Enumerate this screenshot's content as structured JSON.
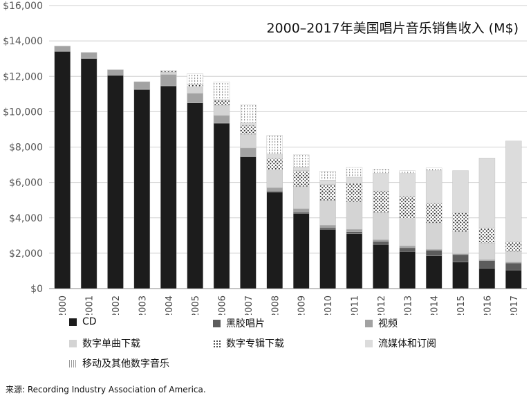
{
  "chart_data": {
    "type": "bar",
    "stacked": true,
    "title": "2000–2017年美国唱片音乐销售收入 (M$)",
    "xlabel": "",
    "ylabel": "",
    "ylim": [
      0,
      16000
    ],
    "grid": true,
    "legend_position": "bottom",
    "categories": [
      "2000",
      "2001",
      "2002",
      "2003",
      "2004",
      "2005",
      "2006",
      "2007",
      "2008",
      "2009",
      "2010",
      "2011",
      "2012",
      "2013",
      "2014",
      "2015",
      "2016",
      "2017"
    ],
    "y_ticks": [
      "$0",
      "$2,000",
      "$4,000",
      "$6,000",
      "$8,000",
      "$10,000",
      "$12,000",
      "$14,000",
      "$16,000"
    ],
    "series": [
      {
        "name": "CD",
        "color": "#1c1c1c",
        "pattern": "solid",
        "values": [
          13400,
          13000,
          12050,
          11250,
          11450,
          10500,
          9350,
          7450,
          5450,
          4250,
          3350,
          3100,
          2500,
          2100,
          1850,
          1500,
          1150,
          1050
        ]
      },
      {
        "name": "黑胶唱片",
        "color": "#5c5c5c",
        "pattern": "solid",
        "values": [
          30,
          30,
          25,
          25,
          25,
          15,
          15,
          25,
          55,
          65,
          85,
          120,
          160,
          210,
          315,
          420,
          430,
          395
        ]
      },
      {
        "name": "视频",
        "color": "#a2a2a2",
        "pattern": "solid",
        "values": [
          280,
          320,
          300,
          420,
          620,
          520,
          420,
          470,
          200,
          200,
          150,
          130,
          100,
          100,
          50,
          50,
          50,
          50
        ]
      },
      {
        "name": "数字单曲下载",
        "color": "#d4d4d4",
        "pattern": "solid",
        "values": [
          0,
          0,
          0,
          0,
          140,
          360,
          580,
          780,
          1000,
          1250,
          1400,
          1550,
          1550,
          1550,
          1500,
          1250,
          950,
          600
        ]
      },
      {
        "name": "数字专辑下载",
        "color": "#ffffff",
        "pattern": "dots",
        "values": [
          0,
          0,
          0,
          0,
          50,
          140,
          270,
          500,
          650,
          900,
          900,
          1050,
          1200,
          1250,
          1100,
          1050,
          850,
          550
        ]
      },
      {
        "name": "流媒体和订阅",
        "color": "#dcdcdc",
        "pattern": "solid",
        "values": [
          0,
          0,
          0,
          0,
          0,
          10,
          50,
          150,
          250,
          200,
          250,
          350,
          1000,
          1300,
          1850,
          2400,
          3950,
          5700
        ]
      },
      {
        "name": "移动及其他数字音乐",
        "color": "#ffffff",
        "pattern": "vlines",
        "values": [
          0,
          0,
          0,
          0,
          50,
          600,
          1000,
          1000,
          1050,
          700,
          500,
          550,
          250,
          150,
          150,
          0,
          0,
          0
        ]
      }
    ]
  },
  "source": "来源: Recording Industry Association of America."
}
